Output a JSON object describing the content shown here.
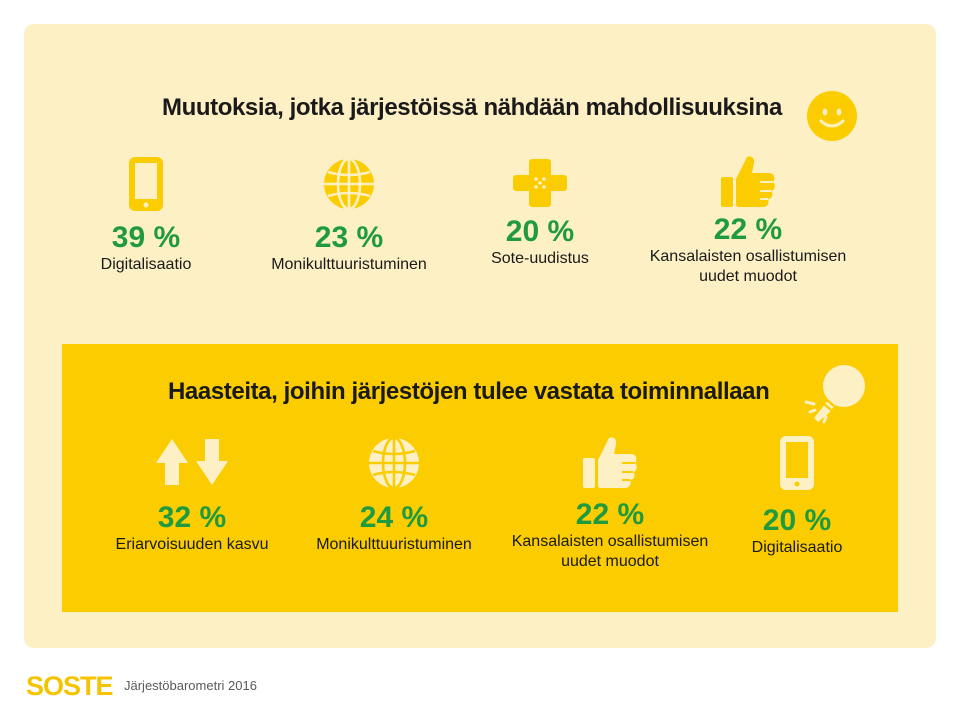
{
  "colors": {
    "card_bg": "#fdf0c4",
    "panel_yellow": "#fbcd00",
    "icon_yellow": "#fbcd00",
    "percent_green": "#1f9a3f"
  },
  "opportunities": {
    "title": "Muutoksia, jotka järjestöissä nähdään mahdollisuuksina",
    "title_icon": "smiley-icon",
    "items": [
      {
        "icon": "mobile-phone-icon",
        "percent": "39 %",
        "label": "Digitalisaatio",
        "label2": ""
      },
      {
        "icon": "globe-icon",
        "percent": "23 %",
        "label": "Monikulttuuristuminen",
        "label2": ""
      },
      {
        "icon": "bandage-cross-icon",
        "percent": "20 %",
        "label": "Sote-uudistus",
        "label2": ""
      },
      {
        "icon": "thumbs-up-icon",
        "percent": "22 %",
        "label": "Kansalaisten osallistumisen",
        "label2": "uudet muodot"
      }
    ]
  },
  "challenges": {
    "title": "Haasteita, joihin järjestöjen tulee vastata toiminnallaan",
    "title_icon": "lightbulb-icon",
    "items": [
      {
        "icon": "up-down-arrows-icon",
        "percent": "32 %",
        "label": "Eriarvoisuuden kasvu",
        "label2": ""
      },
      {
        "icon": "globe-icon",
        "percent": "24 %",
        "label": "Monikulttuuristuminen",
        "label2": ""
      },
      {
        "icon": "thumbs-up-icon",
        "percent": "22 %",
        "label": "Kansalaisten osallistumisen",
        "label2": "uudet muodot"
      },
      {
        "icon": "mobile-phone-icon",
        "percent": "20 %",
        "label": "Digitalisaatio",
        "label2": ""
      }
    ]
  },
  "footer": {
    "logo": "SOSTE",
    "source": "Järjestöbarometri 2016"
  }
}
